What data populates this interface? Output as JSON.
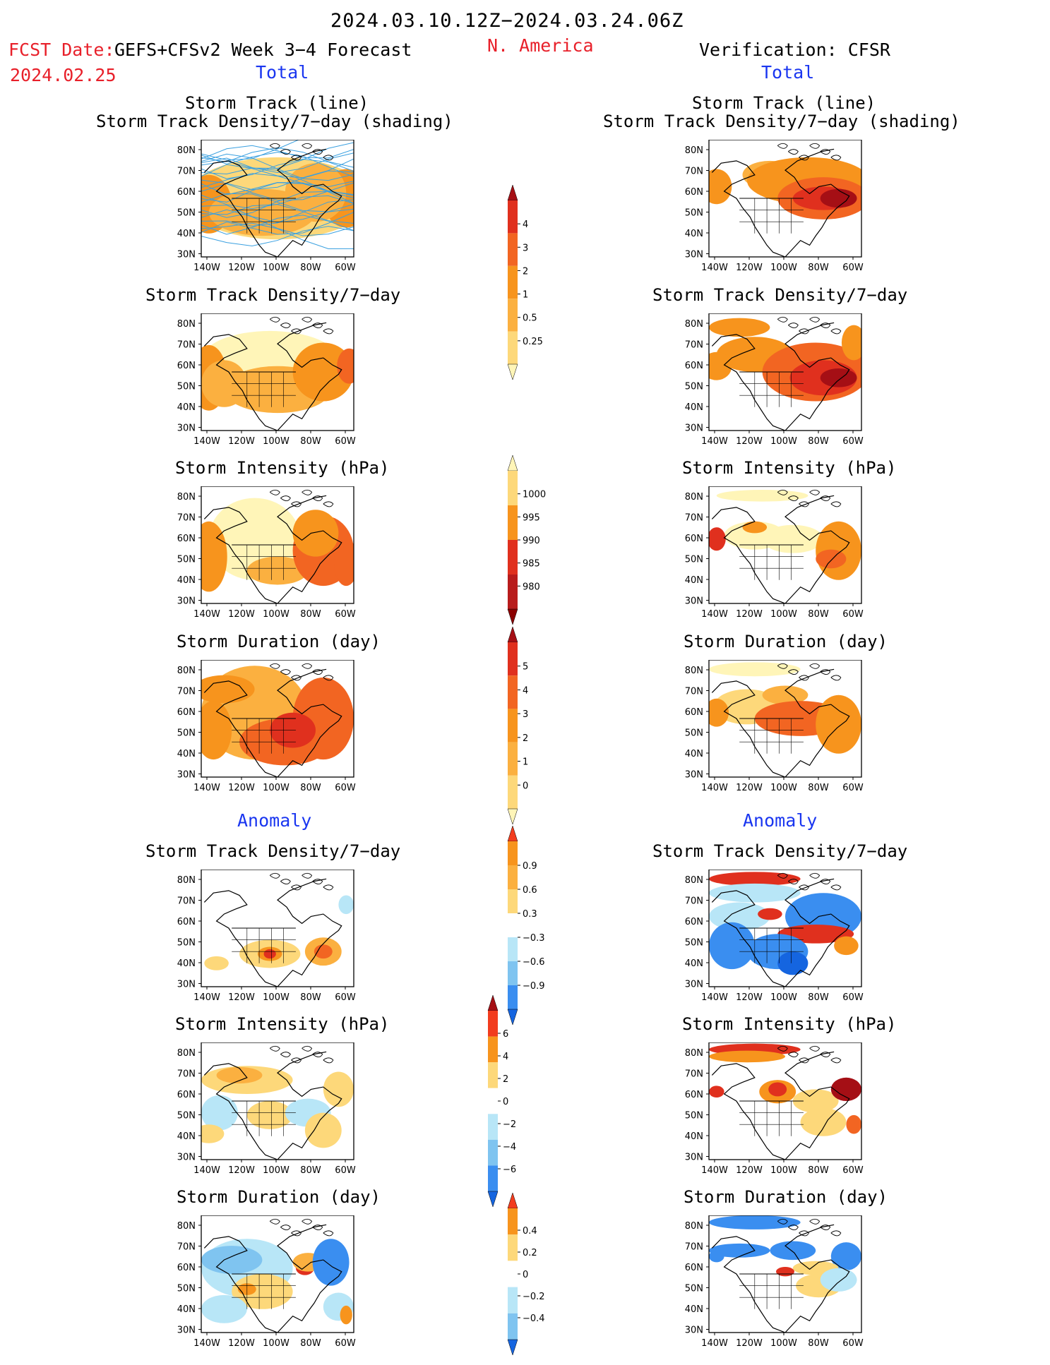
{
  "header": {
    "period": "2024.03.10.12Z−2024.03.24.06Z",
    "fcst_label": "FCST Date:",
    "fcst_model": "GEFS+CFSv2 Week 3−4 Forecast",
    "fcst_date": "2024.02.25",
    "region": "N. America",
    "verification": "Verification: CFSR",
    "section_total_left": "Total",
    "section_total_right": "Total",
    "section_anom_left": "Anomaly",
    "section_anom_right": "Anomaly"
  },
  "panel_titles": {
    "p1_line1": "Storm Track (line)",
    "p1_line2": "Storm Track Density/7−day (shading)",
    "p1r_line1": "Storm Track (line)",
    "p1r_line2": "Storm Track Density/7−day (shading)",
    "p2": "Storm Track Density/7−day",
    "p2r": "Storm Track Density/7−day",
    "p3": "Storm Intensity (hPa)",
    "p3r": "Storm Intensity (hPa)",
    "p4": "Storm Duration (day)",
    "p4r": "Storm Duration (day)",
    "p5": "Storm Track Density/7−day",
    "p5r": "Storm Track Density/7−day",
    "p6": "Storm Intensity (hPa)",
    "p6r": "Storm Intensity (hPa)",
    "p7": "Storm Duration (day)",
    "p7r": "Storm Duration (day)"
  },
  "axes": {
    "lat_labels": [
      "80N",
      "70N",
      "60N",
      "50N",
      "40N",
      "30N"
    ],
    "lon_labels": [
      "140W",
      "120W",
      "100W",
      "80W",
      "60W"
    ]
  },
  "colorbars": [
    {
      "id": "density_total",
      "labels": [
        "4",
        "3",
        "2",
        "1",
        "0.5",
        "0.25"
      ],
      "colors": [
        "#a50f15",
        "#e0301e",
        "#f26522",
        "#f7941d",
        "#fbb040",
        "#fdd87a",
        "#fff5b8"
      ]
    },
    {
      "id": "intensity_total",
      "labels": [
        "1000",
        "995",
        "990",
        "985",
        "980"
      ],
      "colors": [
        "#fff5b8",
        "#fdd87a",
        "#f7941d",
        "#e0301e",
        "#b81c1c",
        "#8b0000"
      ]
    },
    {
      "id": "duration_total",
      "labels": [
        "5",
        "4",
        "3",
        "2",
        "1",
        "0"
      ],
      "colors": [
        "#a50f15",
        "#e0301e",
        "#f26522",
        "#f7941d",
        "#fbb040",
        "#fdd87a",
        "#fff5b8"
      ]
    },
    {
      "id": "density_anom",
      "labels": [
        "0.9",
        "0.6",
        "0.3",
        "−0.3",
        "−0.6",
        "−0.9"
      ],
      "colors": [
        "#f23c1e",
        "#f7941d",
        "#fbb040",
        "#fdd87a",
        "#ffffff",
        "#b8e6f7",
        "#7fc4f0",
        "#3a8ef0",
        "#1565e0"
      ]
    },
    {
      "id": "intensity_anom",
      "labels": [
        "6",
        "4",
        "2",
        "0",
        "−2",
        "−4",
        "−6"
      ],
      "colors": [
        "#a50f15",
        "#f23c1e",
        "#f7941d",
        "#fdd87a",
        "#ffffff",
        "#b8e6f7",
        "#7fc4f0",
        "#3a8ef0",
        "#1565e0"
      ]
    },
    {
      "id": "duration_anom",
      "labels": [
        "0.4",
        "0.2",
        "0",
        "−0.2",
        "−0.4"
      ],
      "colors": [
        "#f23c1e",
        "#f7941d",
        "#fdd87a",
        "#ffffff",
        "#b8e6f7",
        "#7fc4f0",
        "#1565e0"
      ]
    }
  ],
  "colors": {
    "red_text": "#e8202a",
    "blue_text": "#1a36f0",
    "track_line": "#3aa0e0"
  }
}
